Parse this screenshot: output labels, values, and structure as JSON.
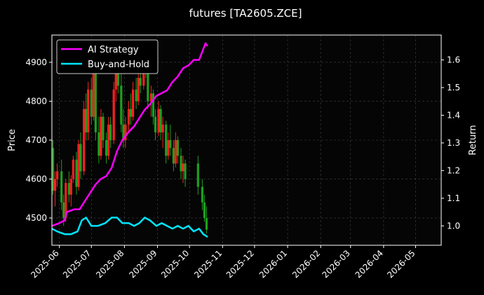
{
  "chart_data": {
    "type": "line",
    "title": "futures [TA2605.ZCE]",
    "xlabel": "",
    "ylabel": "Price",
    "ylabel_right": "Return",
    "grid": true,
    "legend": "top-left",
    "x_ticks": [
      "2025-06",
      "2025-07",
      "2025-08",
      "2025-09",
      "2025-10",
      "2025-11",
      "2025-12",
      "2026-01",
      "2026-02",
      "2026-03",
      "2026-04",
      "2026-05"
    ],
    "y_ticks_left": [
      4500,
      4600,
      4700,
      4800,
      4900
    ],
    "y_ticks_right": [
      1.0,
      1.1,
      1.2,
      1.3,
      1.4,
      1.5,
      1.6
    ],
    "xlim": [
      "2025-05-25",
      "2026-05-25"
    ],
    "ylim_left": [
      4430,
      4970
    ],
    "ylim_right": [
      0.93,
      1.69
    ],
    "colors": {
      "strategy": "#ff00ff",
      "buyhold": "#00e5ff",
      "up": "#ff2020",
      "down": "#1f9e1f"
    },
    "series": [
      {
        "name": "AI Strategy",
        "axis": "right",
        "points": [
          [
            "2025-05-25",
            1.0
          ],
          [
            "2025-06-01",
            1.01
          ],
          [
            "2025-06-06",
            1.02
          ],
          [
            "2025-06-08",
            1.05
          ],
          [
            "2025-06-15",
            1.06
          ],
          [
            "2025-06-20",
            1.06
          ],
          [
            "2025-06-25",
            1.09
          ],
          [
            "2025-06-30",
            1.12
          ],
          [
            "2025-07-05",
            1.15
          ],
          [
            "2025-07-10",
            1.17
          ],
          [
            "2025-07-15",
            1.18
          ],
          [
            "2025-07-20",
            1.21
          ],
          [
            "2025-07-25",
            1.27
          ],
          [
            "2025-07-30",
            1.31
          ],
          [
            "2025-08-05",
            1.34
          ],
          [
            "2025-08-10",
            1.36
          ],
          [
            "2025-08-15",
            1.39
          ],
          [
            "2025-08-20",
            1.42
          ],
          [
            "2025-08-25",
            1.44
          ],
          [
            "2025-08-31",
            1.47
          ],
          [
            "2025-09-05",
            1.48
          ],
          [
            "2025-09-10",
            1.49
          ],
          [
            "2025-09-15",
            1.52
          ],
          [
            "2025-09-20",
            1.54
          ],
          [
            "2025-09-25",
            1.57
          ],
          [
            "2025-09-30",
            1.58
          ],
          [
            "2025-10-05",
            1.6
          ],
          [
            "2025-10-10",
            1.6
          ],
          [
            "2025-10-13",
            1.63
          ],
          [
            "2025-10-16",
            1.66
          ],
          [
            "2025-10-18",
            1.65
          ]
        ]
      },
      {
        "name": "Buy-and-Hold",
        "axis": "right",
        "points": [
          [
            "2025-05-25",
            0.99
          ],
          [
            "2025-05-30",
            0.98
          ],
          [
            "2025-06-06",
            0.97
          ],
          [
            "2025-06-12",
            0.97
          ],
          [
            "2025-06-18",
            0.98
          ],
          [
            "2025-06-22",
            1.02
          ],
          [
            "2025-06-26",
            1.03
          ],
          [
            "2025-07-01",
            1.0
          ],
          [
            "2025-07-07",
            1.0
          ],
          [
            "2025-07-14",
            1.01
          ],
          [
            "2025-07-20",
            1.03
          ],
          [
            "2025-07-25",
            1.03
          ],
          [
            "2025-07-30",
            1.01
          ],
          [
            "2025-08-05",
            1.01
          ],
          [
            "2025-08-10",
            1.0
          ],
          [
            "2025-08-15",
            1.01
          ],
          [
            "2025-08-20",
            1.03
          ],
          [
            "2025-08-25",
            1.02
          ],
          [
            "2025-08-31",
            1.0
          ],
          [
            "2025-09-05",
            1.01
          ],
          [
            "2025-09-10",
            1.0
          ],
          [
            "2025-09-15",
            0.99
          ],
          [
            "2025-09-20",
            1.0
          ],
          [
            "2025-09-25",
            0.99
          ],
          [
            "2025-09-30",
            1.0
          ],
          [
            "2025-10-05",
            0.98
          ],
          [
            "2025-10-10",
            0.99
          ],
          [
            "2025-10-14",
            0.97
          ],
          [
            "2025-10-18",
            0.96
          ]
        ]
      }
    ],
    "candles": [
      [
        "2025-05-26",
        4680,
        4700,
        4560,
        4570
      ],
      [
        "2025-05-28",
        4570,
        4620,
        4530,
        4600
      ],
      [
        "2025-05-30",
        4600,
        4640,
        4580,
        4620
      ],
      [
        "2025-06-03",
        4620,
        4650,
        4520,
        4540
      ],
      [
        "2025-06-05",
        4540,
        4560,
        4480,
        4500
      ],
      [
        "2025-06-07",
        4500,
        4600,
        4490,
        4590
      ],
      [
        "2025-06-10",
        4590,
        4620,
        4540,
        4560
      ],
      [
        "2025-06-12",
        4560,
        4610,
        4530,
        4600
      ],
      [
        "2025-06-14",
        4600,
        4660,
        4590,
        4650
      ],
      [
        "2025-06-17",
        4650,
        4670,
        4560,
        4580
      ],
      [
        "2025-06-19",
        4580,
        4700,
        4570,
        4690
      ],
      [
        "2025-06-21",
        4690,
        4720,
        4600,
        4620
      ],
      [
        "2025-06-24",
        4620,
        4800,
        4610,
        4780
      ],
      [
        "2025-06-26",
        4780,
        4820,
        4700,
        4720
      ],
      [
        "2025-06-28",
        4720,
        4850,
        4700,
        4830
      ],
      [
        "2025-07-01",
        4830,
        4860,
        4740,
        4760
      ],
      [
        "2025-07-03",
        4760,
        4900,
        4750,
        4880
      ],
      [
        "2025-07-05",
        4880,
        4890,
        4700,
        4720
      ],
      [
        "2025-07-08",
        4720,
        4760,
        4640,
        4660
      ],
      [
        "2025-07-10",
        4660,
        4780,
        4650,
        4760
      ],
      [
        "2025-07-12",
        4760,
        4770,
        4680,
        4700
      ],
      [
        "2025-07-15",
        4700,
        4720,
        4640,
        4660
      ],
      [
        "2025-07-17",
        4660,
        4760,
        4650,
        4740
      ],
      [
        "2025-07-19",
        4740,
        4760,
        4680,
        4700
      ],
      [
        "2025-07-22",
        4700,
        4850,
        4690,
        4830
      ],
      [
        "2025-07-24",
        4830,
        4900,
        4800,
        4880
      ],
      [
        "2025-07-26",
        4880,
        4920,
        4820,
        4840
      ],
      [
        "2025-07-29",
        4840,
        4870,
        4720,
        4740
      ],
      [
        "2025-07-31",
        4740,
        4780,
        4680,
        4700
      ],
      [
        "2025-08-02",
        4700,
        4760,
        4680,
        4740
      ],
      [
        "2025-08-05",
        4740,
        4800,
        4720,
        4780
      ],
      [
        "2025-08-07",
        4780,
        4820,
        4740,
        4760
      ],
      [
        "2025-08-09",
        4760,
        4850,
        4750,
        4830
      ],
      [
        "2025-08-12",
        4830,
        4860,
        4780,
        4800
      ],
      [
        "2025-08-14",
        4800,
        4880,
        4790,
        4860
      ],
      [
        "2025-08-16",
        4860,
        4900,
        4820,
        4840
      ],
      [
        "2025-08-19",
        4840,
        4950,
        4830,
        4920
      ],
      [
        "2025-08-21",
        4920,
        4940,
        4860,
        4880
      ],
      [
        "2025-08-23",
        4880,
        4890,
        4780,
        4800
      ],
      [
        "2025-08-26",
        4800,
        4840,
        4760,
        4820
      ],
      [
        "2025-08-28",
        4820,
        4830,
        4740,
        4760
      ],
      [
        "2025-08-30",
        4760,
        4780,
        4700,
        4720
      ],
      [
        "2025-09-02",
        4720,
        4800,
        4710,
        4780
      ],
      [
        "2025-09-04",
        4780,
        4790,
        4700,
        4720
      ],
      [
        "2025-09-06",
        4720,
        4760,
        4680,
        4740
      ],
      [
        "2025-09-09",
        4740,
        4750,
        4640,
        4660
      ],
      [
        "2025-09-11",
        4660,
        4720,
        4650,
        4700
      ],
      [
        "2025-09-13",
        4700,
        4740,
        4660,
        4680
      ],
      [
        "2025-09-16",
        4680,
        4700,
        4620,
        4640
      ],
      [
        "2025-09-18",
        4640,
        4720,
        4630,
        4700
      ],
      [
        "2025-09-20",
        4700,
        4710,
        4640,
        4660
      ],
      [
        "2025-09-23",
        4660,
        4680,
        4600,
        4620
      ],
      [
        "2025-09-25",
        4620,
        4660,
        4590,
        4640
      ],
      [
        "2025-09-27",
        4640,
        4650,
        4580,
        4600
      ],
      [
        "2025-10-09",
        4640,
        4660,
        4560,
        4580
      ],
      [
        "2025-10-13",
        4580,
        4600,
        4520,
        4540
      ],
      [
        "2025-10-15",
        4540,
        4560,
        4490,
        4500
      ],
      [
        "2025-10-17",
        4500,
        4530,
        4460,
        4470
      ]
    ]
  }
}
